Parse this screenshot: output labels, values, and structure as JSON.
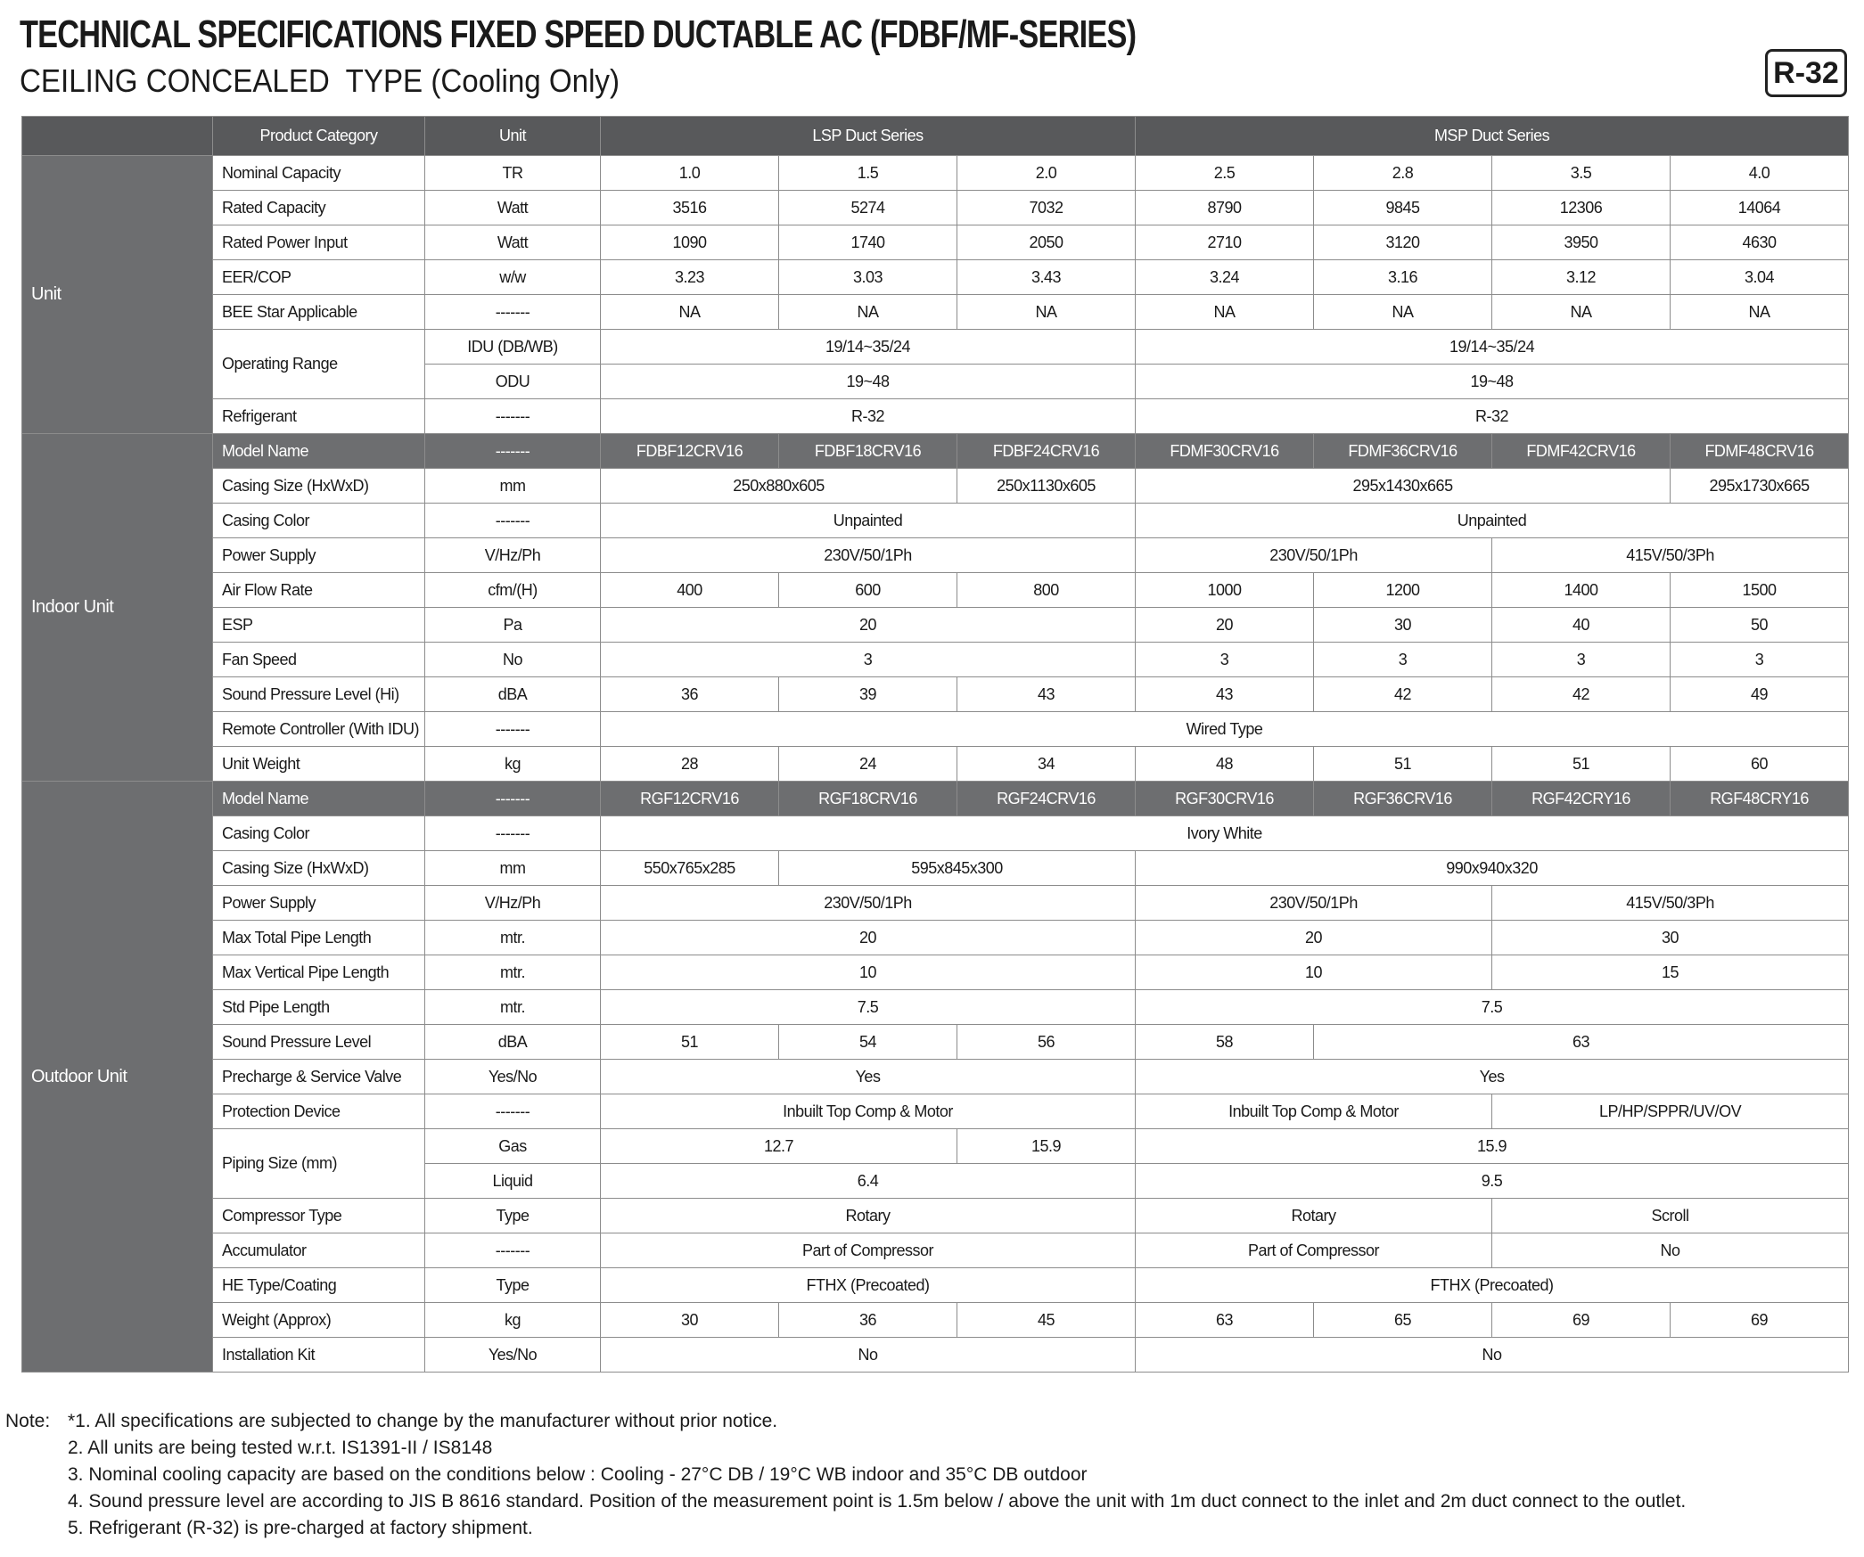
{
  "header": {
    "title": "TECHNICAL SPECIFICATIONS FIXED SPEED DUCTABLE AC (FDBF/MF-SERIES)",
    "subtitle": "CEILING CONCEALED  TYPE (Cooling Only)",
    "badge": "R-32"
  },
  "table": {
    "head": [
      "Product Category",
      "Unit",
      "LSP Duct Series",
      "MSP Duct Series"
    ],
    "sections": [
      {
        "name": "Unit",
        "rows": [
          {
            "label": "Nominal Capacity",
            "unit": "TR",
            "cells": [
              "1.0",
              "1.5",
              "2.0",
              "2.5",
              "2.8",
              "3.5",
              "4.0"
            ]
          },
          {
            "label": "Rated Capacity",
            "unit": "Watt",
            "cells": [
              "3516",
              "5274",
              "7032",
              "8790",
              "9845",
              "12306",
              "14064"
            ]
          },
          {
            "label": "Rated Power Input",
            "unit": "Watt",
            "cells": [
              "1090",
              "1740",
              "2050",
              "2710",
              "3120",
              "3950",
              "4630"
            ]
          },
          {
            "label": "EER/COP",
            "unit": "w/w",
            "cells": [
              "3.23",
              "3.03",
              "3.43",
              "3.24",
              "3.16",
              "3.12",
              "3.04"
            ]
          },
          {
            "label": "BEE Star Applicable",
            "unit": "-------",
            "cells": [
              "NA",
              "NA",
              "NA",
              "NA",
              "NA",
              "NA",
              "NA"
            ]
          },
          {
            "label": "Operating Range",
            "subrows": [
              {
                "unit": "IDU (DB/WB)",
                "cells": [
                  "19/14~35/24",
                  "19/14~35/24"
                ]
              },
              {
                "unit": "ODU",
                "cells": [
                  "19~48",
                  "19~48"
                ]
              }
            ]
          },
          {
            "label": "Refrigerant",
            "unit": "-------",
            "cells": [
              "R-32",
              "R-32"
            ]
          }
        ]
      },
      {
        "name": "Indoor Unit",
        "rows": [
          {
            "label": "Model Name",
            "unit": "-------",
            "cells": [
              "FDBF12CRV16",
              "FDBF18CRV16",
              "FDBF24CRV16",
              "FDMF30CRV16",
              "FDMF36CRV16",
              "FDMF42CRV16",
              "FDMF48CRV16"
            ]
          },
          {
            "label": "Casing Size (HxWxD)",
            "unit": "mm",
            "cells": [
              "250x880x605",
              "250x1130x605",
              "295x1430x665",
              "295x1730x665"
            ]
          },
          {
            "label": "Casing Color",
            "unit": "-------",
            "cells": [
              "Unpainted",
              "Unpainted"
            ]
          },
          {
            "label": "Power Supply",
            "unit": "V/Hz/Ph",
            "cells": [
              "230V/50/1Ph",
              "230V/50/1Ph",
              "415V/50/3Ph"
            ]
          },
          {
            "label": "Air Flow Rate",
            "unit": "cfm/(H)",
            "cells": [
              "400",
              "600",
              "800",
              "1000",
              "1200",
              "1400",
              "1500"
            ]
          },
          {
            "label": "ESP",
            "unit": "Pa",
            "cells": [
              "20",
              "20",
              "30",
              "40",
              "50"
            ]
          },
          {
            "label": "Fan Speed",
            "unit": "No",
            "cells": [
              "3",
              "3",
              "3",
              "3",
              "3"
            ]
          },
          {
            "label": "Sound Pressure Level (Hi)",
            "unit": "dBA",
            "cells": [
              "36",
              "39",
              "43",
              "43",
              "42",
              "42",
              "49"
            ]
          },
          {
            "label": "Remote Controller (With IDU)",
            "unit": "-------",
            "cells": [
              "Wired Type"
            ]
          },
          {
            "label": "Unit Weight",
            "unit": "kg",
            "cells": [
              "28",
              "24",
              "34",
              "48",
              "51",
              "51",
              "60"
            ]
          }
        ]
      },
      {
        "name": "Outdoor Unit",
        "rows": [
          {
            "label": "Model Name",
            "unit": "-------",
            "cells": [
              "RGF12CRV16",
              "RGF18CRV16",
              "RGF24CRV16",
              "RGF30CRV16",
              "RGF36CRV16",
              "RGF42CRY16",
              "RGF48CRY16"
            ]
          },
          {
            "label": "Casing Color",
            "unit": "-------",
            "cells": [
              "Ivory White"
            ]
          },
          {
            "label": "Casing Size (HxWxD)",
            "unit": "mm",
            "cells": [
              "550x765x285",
              "595x845x300",
              "990x940x320"
            ]
          },
          {
            "label": "Power Supply",
            "unit": "V/Hz/Ph",
            "cells": [
              "230V/50/1Ph",
              "230V/50/1Ph",
              "415V/50/3Ph"
            ]
          },
          {
            "label": "Max Total Pipe Length",
            "unit": "mtr.",
            "cells": [
              "20",
              "20",
              "30"
            ]
          },
          {
            "label": "Max Vertical Pipe Length",
            "unit": "mtr.",
            "cells": [
              "10",
              "10",
              "15"
            ]
          },
          {
            "label": "Std Pipe Length",
            "unit": "mtr.",
            "cells": [
              "7.5",
              "7.5"
            ]
          },
          {
            "label": "Sound Pressure Level",
            "unit": "dBA",
            "cells": [
              "51",
              "54",
              "56",
              "58",
              "63"
            ]
          },
          {
            "label": "Precharge & Service Valve",
            "unit": "Yes/No",
            "cells": [
              "Yes",
              "Yes"
            ]
          },
          {
            "label": "Protection Device",
            "unit": "-------",
            "cells": [
              "Inbuilt Top Comp & Motor",
              "Inbuilt Top Comp & Motor",
              "LP/HP/SPPR/UV/OV"
            ]
          },
          {
            "label": "Piping Size (mm)",
            "subrows": [
              {
                "unit": "Gas",
                "cells": [
                  "12.7",
                  "15.9",
                  "15.9"
                ]
              },
              {
                "unit": "Liquid",
                "cells": [
                  "6.4",
                  "9.5"
                ]
              }
            ]
          },
          {
            "label": "Compressor Type",
            "unit": "Type",
            "cells": [
              "Rotary",
              "Rotary",
              "Scroll"
            ]
          },
          {
            "label": "Accumulator",
            "unit": "-------",
            "cells": [
              "Part of Compressor",
              "Part of Compressor",
              "No"
            ]
          },
          {
            "label": "HE Type/Coating",
            "unit": "Type",
            "cells": [
              "FTHX (Precoated)",
              "FTHX (Precoated)"
            ]
          },
          {
            "label": "Weight (Approx)",
            "unit": "kg",
            "cells": [
              "30",
              "36",
              "45",
              "63",
              "65",
              "69",
              "69"
            ]
          },
          {
            "label": "Installation Kit",
            "unit": "Yes/No",
            "cells": [
              "No",
              "No"
            ]
          }
        ]
      }
    ]
  },
  "notes": {
    "prefix": "Note:",
    "items": [
      "*1. All specifications are subjected to change by the manufacturer without prior notice.",
      "2.  All units are being tested w.r.t. IS1391-II / IS8148",
      "3.  Nominal cooling capacity are based on the conditions below : Cooling - 27°C DB / 19°C WB indoor and 35°C DB outdoor",
      "4.  Sound pressure level are according to JIS B 8616 standard. Position of the measurement point is 1.5m below / above the unit with 1m duct connect to the inlet and 2m duct connect to the outlet.",
      "5.  Refrigerant (R-32) is pre-charged at factory shipment."
    ]
  }
}
